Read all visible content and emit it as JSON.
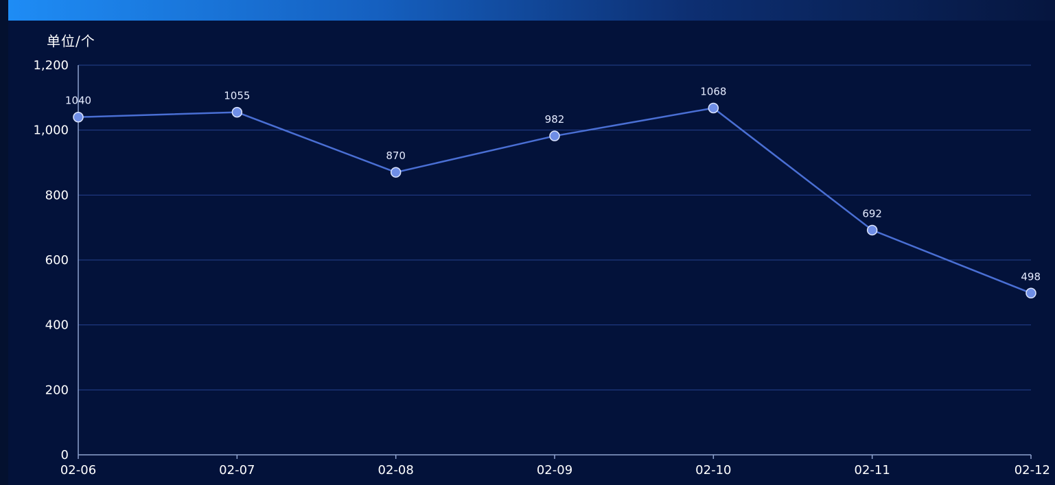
{
  "colors": {
    "background": "#03123a",
    "header_gradient_start": "#1e8cf5",
    "gridline": "#24418f",
    "axis": "#8fa3cf",
    "series_line": "#4a6fd4",
    "marker_fill": "#6f8ee6",
    "marker_stroke": "#dde6ff",
    "text": "#ffffff"
  },
  "chart_data": {
    "type": "line",
    "unit_label": "单位/个",
    "categories": [
      "02-06",
      "02-07",
      "02-08",
      "02-09",
      "02-10",
      "02-11",
      "02-12"
    ],
    "series": [
      {
        "values": [
          1040,
          1055,
          870,
          982,
          1068,
          692,
          498
        ]
      }
    ],
    "data_labels": [
      "1040",
      "1055",
      "870",
      "982",
      "1068",
      "692",
      "498"
    ],
    "ylim": [
      0,
      1200
    ],
    "yticks": [
      0,
      200,
      400,
      600,
      800,
      1000,
      1200
    ],
    "ytick_labels": [
      "0",
      "200",
      "400",
      "600",
      "800",
      "1,000",
      "1,200"
    ],
    "grid": true,
    "legend": "none"
  }
}
